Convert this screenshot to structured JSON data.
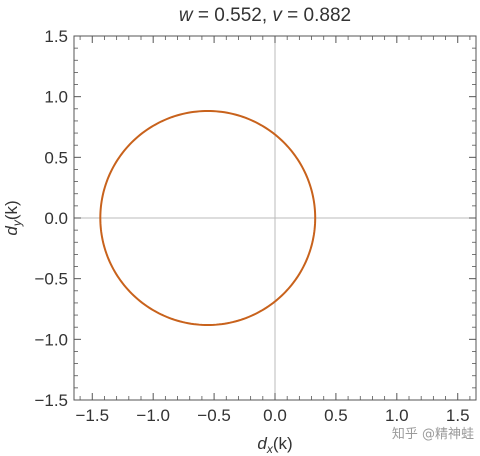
{
  "chart_data": {
    "type": "line",
    "title": {
      "w_symbol": "w",
      "w_text": " = 0.552, ",
      "v_symbol": "v",
      "v_text": " = 0.882"
    },
    "params": {
      "w": 0.552,
      "v": 0.882
    },
    "xlabel": {
      "base": "d",
      "sub": "x",
      "arg": "(k)"
    },
    "ylabel": {
      "base": "d",
      "sub": "y",
      "arg": "(k)"
    },
    "xlim": [
      -1.65,
      1.65
    ],
    "ylim": [
      -1.5,
      1.5
    ],
    "xticks": [
      -1.5,
      -1.0,
      -0.5,
      0.0,
      0.5,
      1.0,
      1.5
    ],
    "yticks": [
      -1.5,
      -1.0,
      -0.5,
      0.0,
      0.5,
      1.0,
      1.5
    ],
    "xtick_labels": [
      "−1.5",
      "−1.0",
      "−0.5",
      "0.0",
      "0.5",
      "1.0",
      "1.5"
    ],
    "ytick_labels": [
      "−1.5",
      "−1.0",
      "−0.5",
      "0.0",
      "0.5",
      "1.0",
      "1.5"
    ],
    "grid": false,
    "zero_lines": true,
    "series": [
      {
        "shape": "circle",
        "center": [
          -0.552,
          0.0
        ],
        "radius": 0.882,
        "color": "#c8621c"
      }
    ]
  },
  "watermark": "知乎 @精神蛙"
}
